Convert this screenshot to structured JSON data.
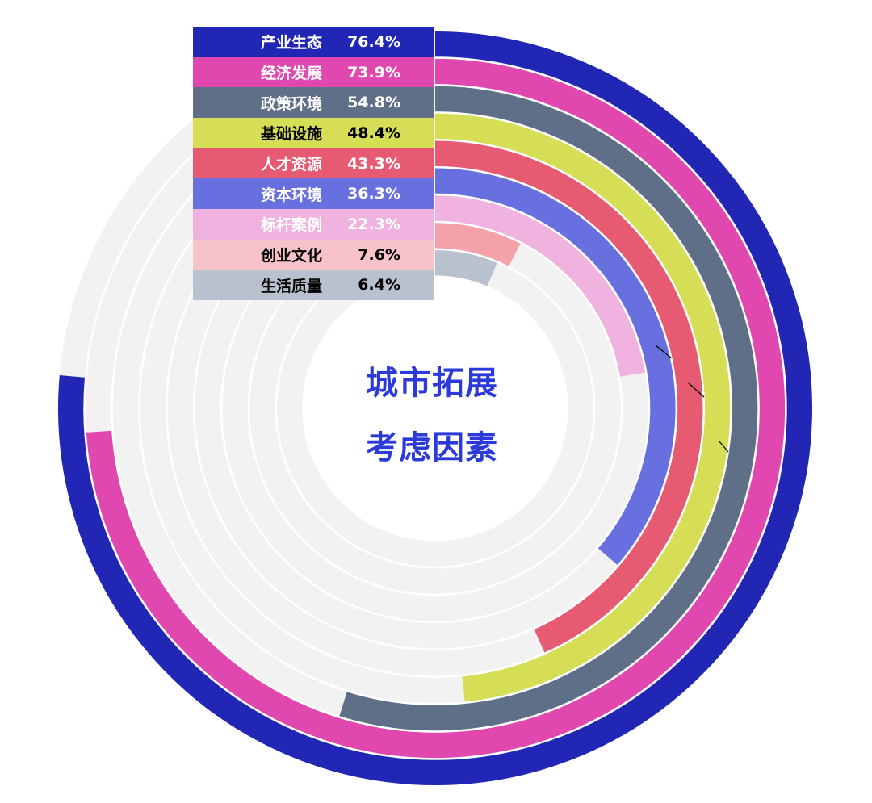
{
  "center_title": {
    "line1": "城市拓展",
    "line2": "考虑因素"
  },
  "chart_data": {
    "type": "radial-bar",
    "title": "城市拓展考虑因素",
    "categories": [
      "产业生态",
      "经济发展",
      "政策环境",
      "基础设施",
      "人才资源",
      "资本环境",
      "标杆案例",
      "创业文化",
      "生活质量"
    ],
    "values": [
      76.4,
      73.9,
      54.8,
      48.4,
      43.3,
      36.3,
      22.3,
      7.6,
      6.4
    ],
    "labels": [
      "76.4%",
      "73.9%",
      "54.8%",
      "48.4%",
      "43.3%",
      "36.3%",
      "22.3%",
      "7.6%",
      "6.4%"
    ],
    "value_max": 100,
    "colors": [
      "#2127b4",
      "#e048b0",
      "#5e6f87",
      "#d6de56",
      "#e65a72",
      "#6870df",
      "#f0b2de",
      "#f5a1aa",
      "#b8c1cd"
    ],
    "legend_text_colors": [
      "#ffffff",
      "#ffffff",
      "#ffffff",
      "#000000",
      "#ffffff",
      "#ffffff",
      "#ffffff",
      "#000000",
      "#000000"
    ],
    "legend_bg_colors": [
      "#2127b4",
      "#e048b0",
      "#5e6f87",
      "#d6de56",
      "#e65a72",
      "#6870df",
      "#f0b2de",
      "#f7c2c8",
      "#b8c1cd"
    ],
    "track_color": "#f2f2f2",
    "legend_placement": "top-left"
  }
}
